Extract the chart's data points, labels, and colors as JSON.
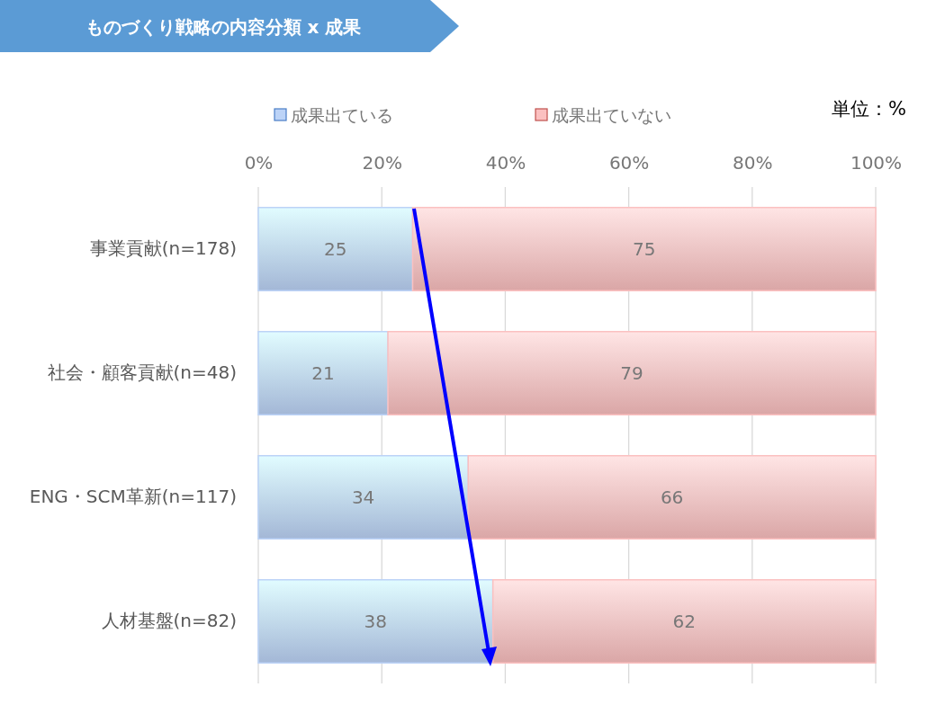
{
  "chart_data": {
    "type": "bar",
    "orientation": "horizontal",
    "stacked": true,
    "title": "ものづくり戦略の内容分類 x 成果",
    "categories": [
      "事業貢献(n=178)",
      "社会・顧客貢献(n=48)",
      "ENG・SCM革新(n=117)",
      "人材基盤(n=82)"
    ],
    "series": [
      {
        "name": "成果出ている",
        "color": "#bcd3f7",
        "values": [
          25,
          21,
          34,
          38
        ]
      },
      {
        "name": "成果出ていない",
        "color": "#fbc0c0",
        "values": [
          75,
          79,
          66,
          62
        ]
      }
    ],
    "xlim": [
      0,
      100
    ],
    "xticks": [
      {
        "value": 0,
        "label": "0%"
      },
      {
        "value": 20,
        "label": "20%"
      },
      {
        "value": 40,
        "label": "40%"
      },
      {
        "value": 60,
        "label": "60%"
      },
      {
        "value": 80,
        "label": "80%"
      },
      {
        "value": 100,
        "label": "100%"
      }
    ],
    "grid": "x",
    "legend": "top",
    "data_labels": true,
    "annotations": [
      "単位：%"
    ]
  }
}
